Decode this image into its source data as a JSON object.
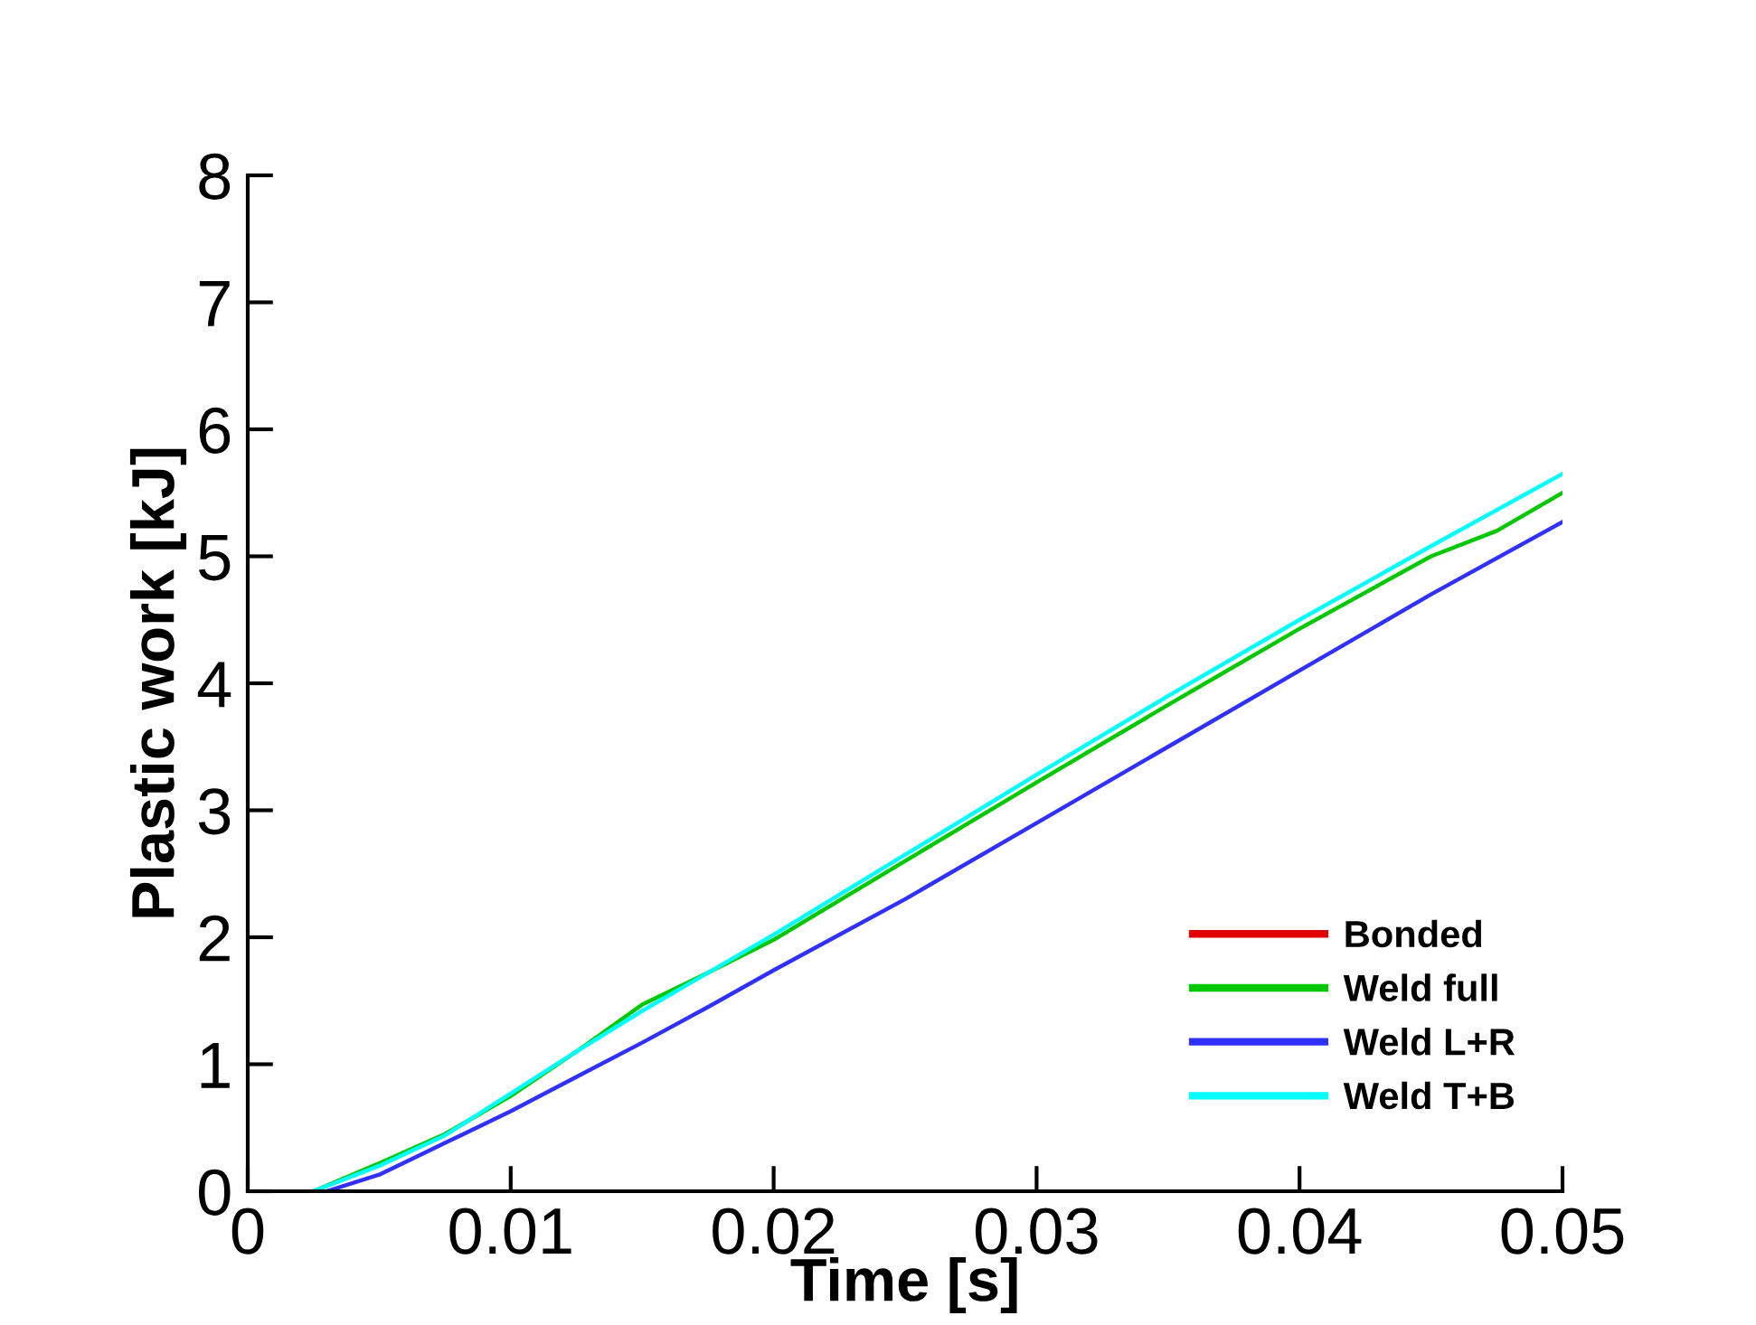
{
  "chart_data": {
    "type": "line",
    "xlabel": "Time [s]",
    "ylabel": "Plastic work [kJ]",
    "xlim": [
      0,
      0.05
    ],
    "ylim": [
      0,
      8
    ],
    "xticks": [
      {
        "value": 0,
        "label": "0"
      },
      0.01,
      0.02,
      0.03,
      0.04,
      0.05
    ],
    "yticks": [
      0,
      1,
      2,
      3,
      4,
      5,
      6,
      7,
      8
    ],
    "grid": false,
    "legend": "bottom right",
    "marker": "none",
    "line_style": "solid",
    "series": [
      {
        "name": "Bonded",
        "color": "#e00000"
      },
      {
        "name": "Weld full",
        "color": "#00c800",
        "x": [
          0.0025,
          0.005,
          0.0075,
          0.01,
          0.0125,
          0.015,
          0.0175,
          0.02,
          0.025,
          0.03,
          0.035,
          0.04,
          0.045,
          0.0475,
          0.05
        ],
        "values": [
          0,
          0.22,
          0.45,
          0.75,
          1.1,
          1.47,
          1.72,
          1.98,
          2.6,
          3.22,
          3.83,
          4.43,
          5.0,
          5.2,
          5.5
        ]
      },
      {
        "name": "Weld L+R",
        "color": "#3030ff",
        "x": [
          0.003,
          0.005,
          0.0075,
          0.01,
          0.0125,
          0.015,
          0.0175,
          0.02,
          0.025,
          0.03,
          0.035,
          0.04,
          0.045,
          0.05
        ],
        "values": [
          0,
          0.13,
          0.38,
          0.63,
          0.9,
          1.17,
          1.45,
          1.74,
          2.3,
          2.9,
          3.5,
          4.1,
          4.7,
          5.27
        ]
      },
      {
        "name": "Weld T+B",
        "color": "#00ffff",
        "x": [
          0.0025,
          0.005,
          0.0075,
          0.01,
          0.0125,
          0.015,
          0.0175,
          0.02,
          0.025,
          0.03,
          0.035,
          0.04,
          0.045,
          0.05
        ],
        "values": [
          0,
          0.2,
          0.44,
          0.77,
          1.1,
          1.42,
          1.72,
          2.02,
          2.65,
          3.28,
          3.9,
          4.5,
          5.08,
          5.65
        ]
      }
    ]
  }
}
